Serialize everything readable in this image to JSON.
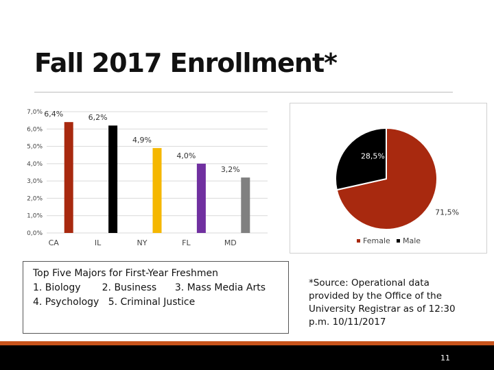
{
  "slide": {
    "title": "Fall 2017 Enrollment*",
    "page_number": "11"
  },
  "majors": {
    "heading": "Top Five Majors for First-Year Freshmen",
    "line1": "1. Biology       2. Business      3. Mass Media Arts",
    "line2": "4. Psychology   5. Criminal Justice"
  },
  "source_note": "*Source: Operational data provided by the Office of the University Registrar as of 12:30 p.m. 10/11/2017",
  "colors": {
    "accent": "#c8541c",
    "footer": "#000000"
  },
  "chart_data": [
    {
      "type": "bar",
      "categories": [
        "CA",
        "IL",
        "NY",
        "FL",
        "MD"
      ],
      "values": [
        6.4,
        6.2,
        4.9,
        4.0,
        3.2
      ],
      "data_labels": [
        "6,4%",
        "6,2%",
        "4,9%",
        "4,0%",
        "3,2%"
      ],
      "colors": [
        "#a8290f",
        "#000000",
        "#f5b700",
        "#7030a0",
        "#808080"
      ],
      "ylim": [
        0,
        7
      ],
      "yticks": [
        0,
        1,
        2,
        3,
        4,
        5,
        6,
        7
      ],
      "ytick_labels": [
        "0,0%",
        "1,0%",
        "2,0%",
        "3,0%",
        "4,0%",
        "5,0%",
        "6,0%",
        "7,0%"
      ],
      "grid": true
    },
    {
      "type": "pie",
      "labels": [
        "Female",
        "Male"
      ],
      "values": [
        71.5,
        28.5
      ],
      "data_labels": [
        "71,5%",
        "28,5%"
      ],
      "colors": [
        "#a8290f",
        "#000000"
      ],
      "legend_position": "bottom"
    }
  ]
}
